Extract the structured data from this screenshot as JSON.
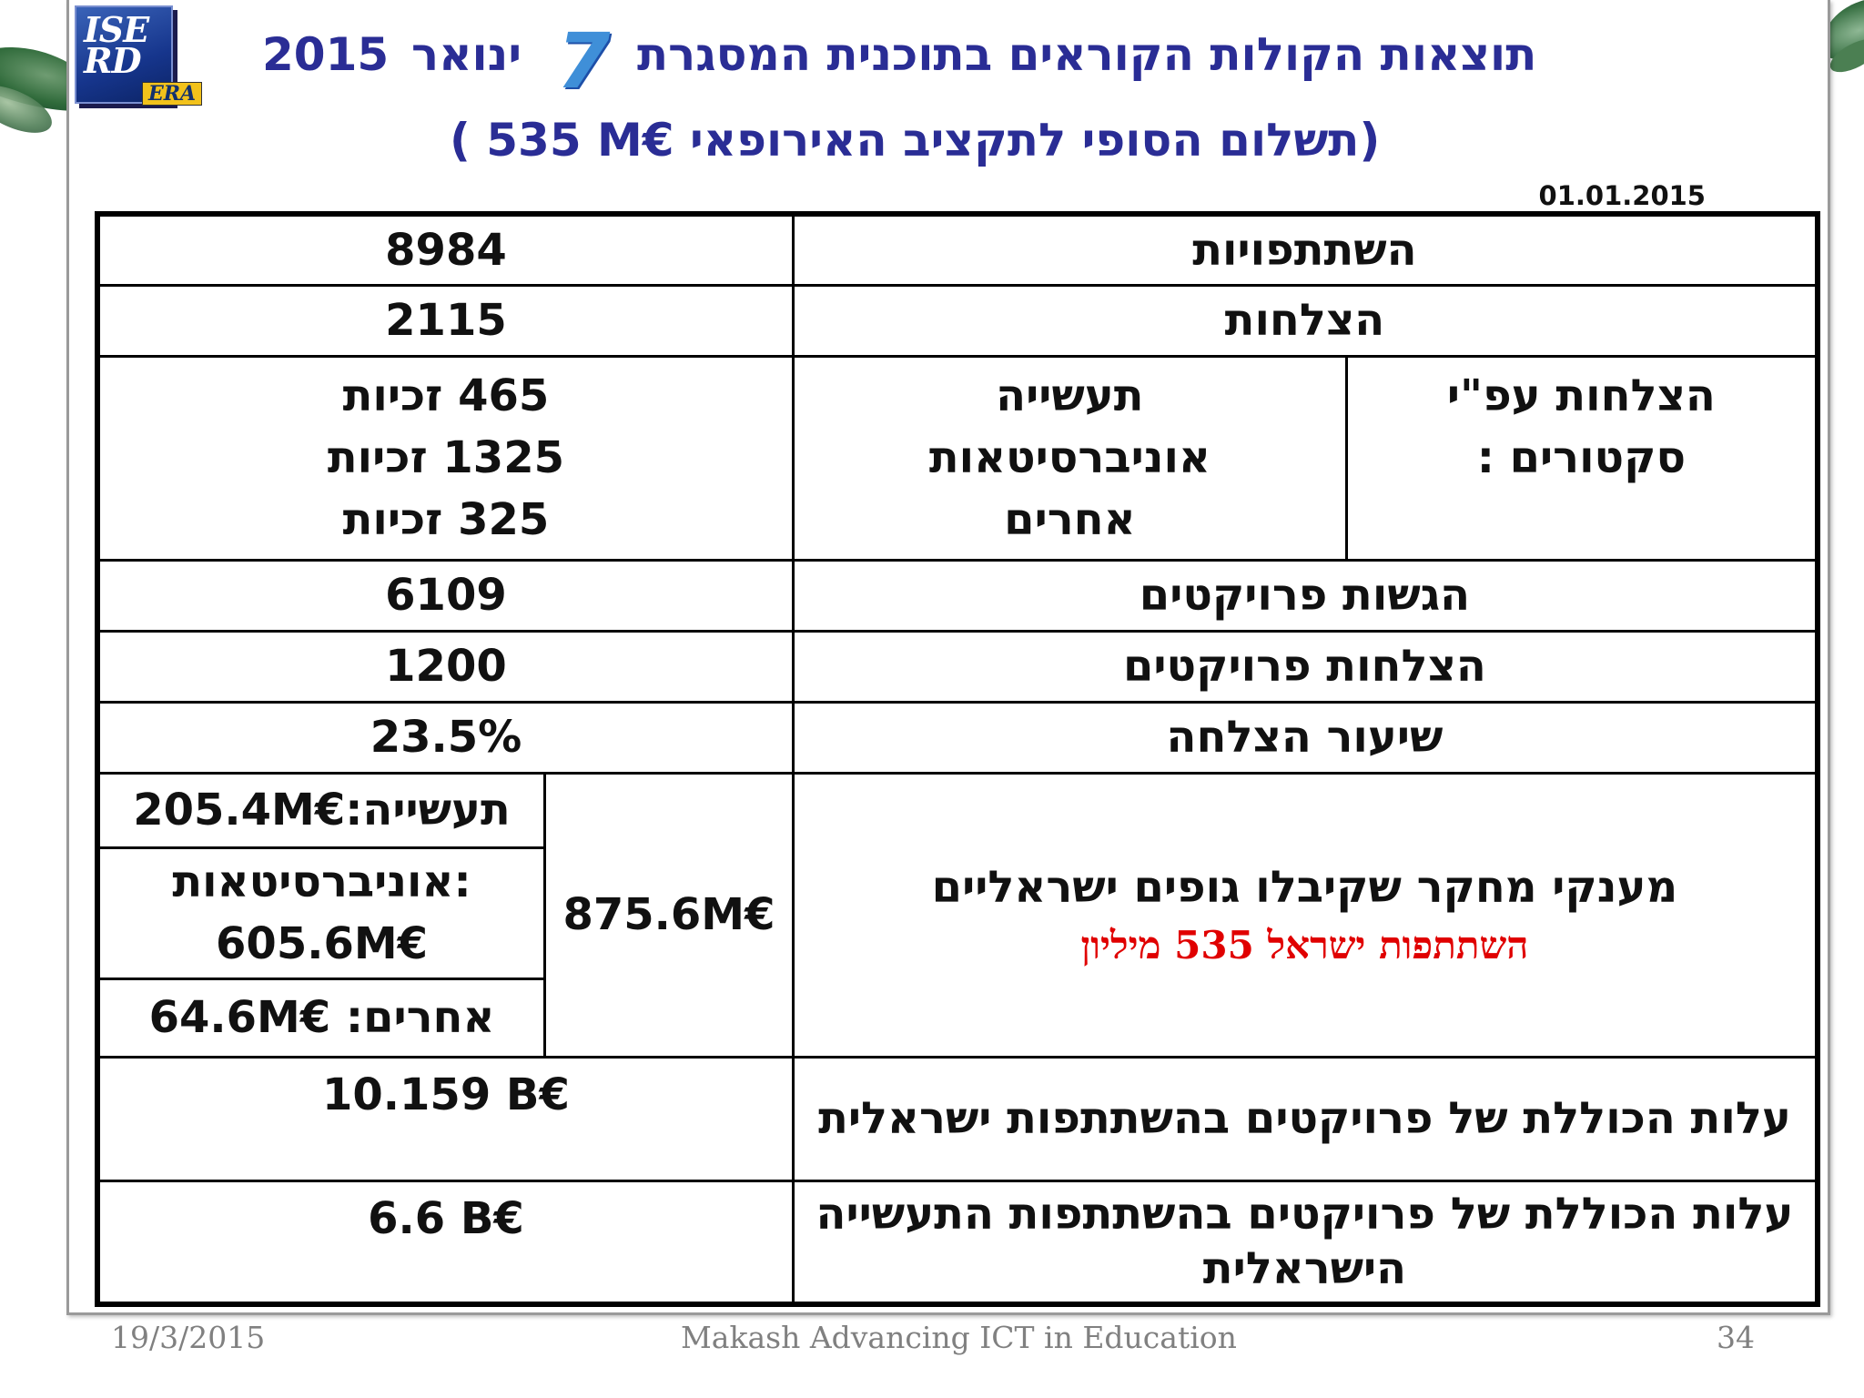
{
  "header": {
    "logo_text": "ISE\nRD",
    "logo_badge": "ERA",
    "title_part_year": "2015",
    "title_part_month": "ינואר",
    "title_part_main": "תוצאות הקולות הקוראים בתוכנית המסגרת",
    "title_number": "7",
    "subtitle": "( 535 M€ תשלום הסופי לתקציב האירופאי)",
    "date": "01.01.2015"
  },
  "table": {
    "participations": {
      "label": "השתתפויות",
      "value": "8984"
    },
    "successes": {
      "label": "הצלחות",
      "value": "2115"
    },
    "by_sector": {
      "label": "הצלחות עפ\"י\nסקטורים :",
      "sectors": "תעשייה\nאוניברסיטאות\nאחרים",
      "values": "465 זכיות\n1325 זכיות\n325 זכיות"
    },
    "submissions": {
      "label": "הגשות פרויקטים",
      "value": "6109"
    },
    "project_successes": {
      "label": "הצלחות פרויקטים",
      "value": "1200"
    },
    "success_rate": {
      "label": "שיעור הצלחה",
      "value": "23.5%"
    },
    "grants": {
      "label": "מענקי מחקר שקיבלו גופים ישראליים",
      "sub_label": "השתתפות ישראל 535 מיליון",
      "total": "875.6M€",
      "industry": "205.4M€:תעשייה",
      "universities": "אוניברסיטאות:\n605.6M€",
      "others": "64.6M€ :אחרים"
    },
    "total_cost_israeli": {
      "label": "עלות הכוללת של פרויקטים בהשתתפות ישראלית",
      "value": "10.159 B€"
    },
    "total_cost_industry": {
      "label": "עלות הכוללת של פרויקטים בהשתתפות התעשייה הישראלית",
      "value": "6.6 B€"
    }
  },
  "footer": {
    "date": "19/3/2015",
    "center": "Makash Advancing ICT in Education",
    "page": "34"
  },
  "colors": {
    "title": "#2a2d95",
    "highlight_red": "#e00000",
    "highlight_orange": "#e8401c"
  }
}
